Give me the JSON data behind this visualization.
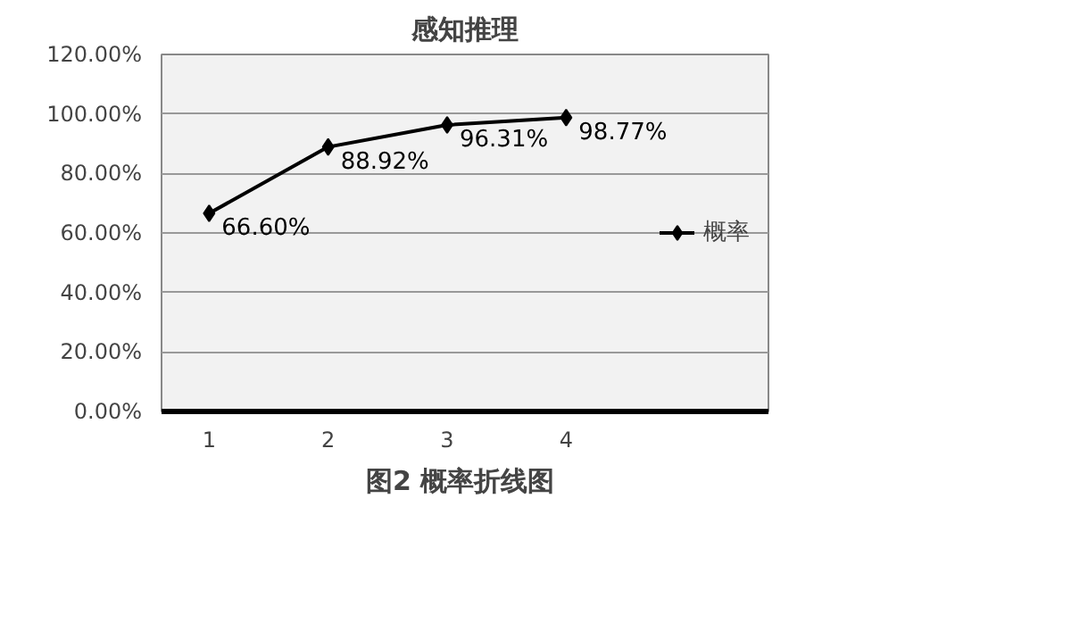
{
  "chart_data": {
    "type": "line",
    "title": "感知推理",
    "categories": [
      "1",
      "2",
      "3",
      "4"
    ],
    "series": [
      {
        "name": "概率",
        "color": "#000000",
        "values": [
          66.6,
          88.92,
          96.31,
          98.77
        ],
        "value_labels": [
          "66.60%",
          "88.92%",
          "96.31%",
          "98.77%"
        ]
      }
    ],
    "ylim": [
      0,
      120
    ],
    "yticks": [
      {
        "value": 0,
        "label": "0.00%"
      },
      {
        "value": 20,
        "label": "20.00%"
      },
      {
        "value": 40,
        "label": "40.00%"
      },
      {
        "value": 60,
        "label": "60.00%"
      },
      {
        "value": 80,
        "label": "80.00%"
      },
      {
        "value": 100,
        "label": "100.00%"
      },
      {
        "value": 120,
        "label": "120.00%"
      }
    ],
    "grid": "y",
    "legend": "right",
    "marker": "diamond",
    "line_style": "solid",
    "annotations": [
      "图2  概率折线图"
    ]
  }
}
